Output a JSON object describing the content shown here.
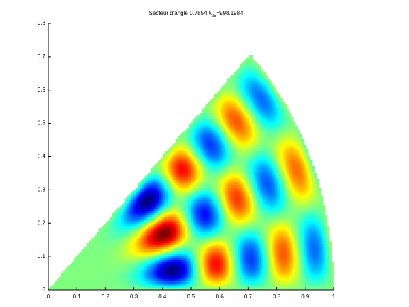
{
  "chart_data": {
    "type": "sector-field",
    "title": {
      "text": "Secteur d'angle",
      "angle": 0.7854,
      "symbol": "λ",
      "index": 25,
      "relation": "=",
      "eigenvalue": 998.1984
    },
    "xlim": [
      0,
      1
    ],
    "ylim": [
      0,
      0.8
    ],
    "xticks": [
      0,
      0.1,
      0.2,
      0.3,
      0.4,
      0.5,
      0.6,
      0.7,
      0.8,
      0.9,
      1
    ],
    "yticks": [
      0,
      0.1,
      0.2,
      0.3,
      0.4,
      0.5,
      0.6,
      0.7,
      0.8
    ],
    "colormap": "jet"
  }
}
